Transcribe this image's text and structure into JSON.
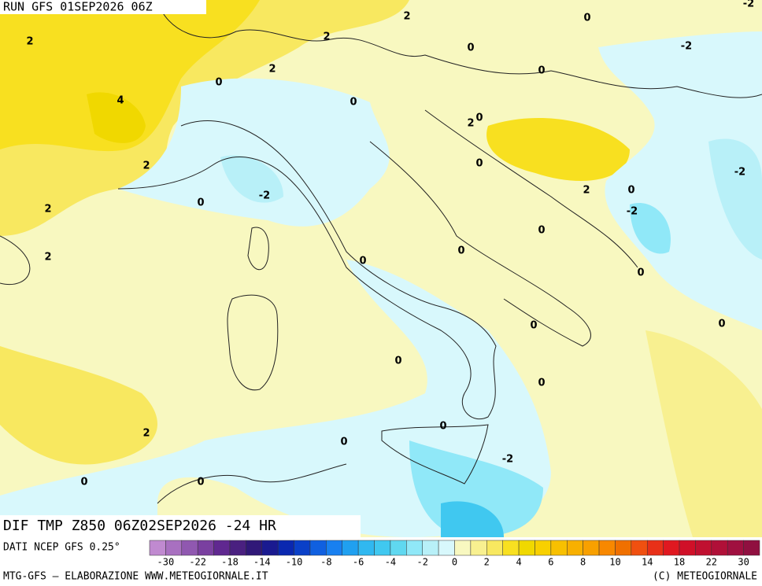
{
  "header": {
    "run": "RUN GFS 01SEP2026 06Z"
  },
  "map": {
    "contour_labels": [
      "2",
      "2",
      "2",
      "0",
      "-2",
      "0",
      "-2",
      "2",
      "0",
      "0",
      "4",
      "0",
      "2",
      "0",
      "2",
      "0",
      "-2",
      "-2",
      "0",
      "2",
      "0",
      "2",
      "-2",
      "0",
      "2",
      "0",
      "0",
      "0",
      "0",
      "0",
      "0",
      "0",
      "2",
      "0",
      "0",
      "-2",
      "0",
      "0"
    ]
  },
  "footer": {
    "field": "DIF TMP Z850 06Z02SEP2026 -24 HR",
    "source": "DATI NCEP GFS 0.25°",
    "credit": "MTG-GFS — ELABORAZIONE WWW.METEOGIORNALE.IT",
    "copyright": "(C) METEOGIORNALE"
  },
  "colorbar": {
    "ticks": [
      -30,
      -22,
      -18,
      -14,
      -10,
      -8,
      -6,
      -4,
      -2,
      0,
      2,
      4,
      6,
      8,
      10,
      14,
      18,
      22,
      30
    ],
    "colors": [
      "#c08ad0",
      "#a870c0",
      "#9058b0",
      "#7a40a0",
      "#602890",
      "#4a2080",
      "#301878",
      "#1a1a90",
      "#0a28b0",
      "#0a40c8",
      "#1060e0",
      "#1880f0",
      "#20a0f0",
      "#30b8f0",
      "#40c8f0",
      "#60d8f0",
      "#90e8f8",
      "#b8f0f8",
      "#d8f8fc",
      "#f8f8c0",
      "#f8f090",
      "#f8e860",
      "#f8e020",
      "#f0d800",
      "#f8d000",
      "#f8c000",
      "#f8b000",
      "#f8a000",
      "#f88800",
      "#f07000",
      "#f05010",
      "#e83018",
      "#e01820",
      "#d01028",
      "#c01030",
      "#b01038",
      "#a01040",
      "#901040"
    ]
  }
}
